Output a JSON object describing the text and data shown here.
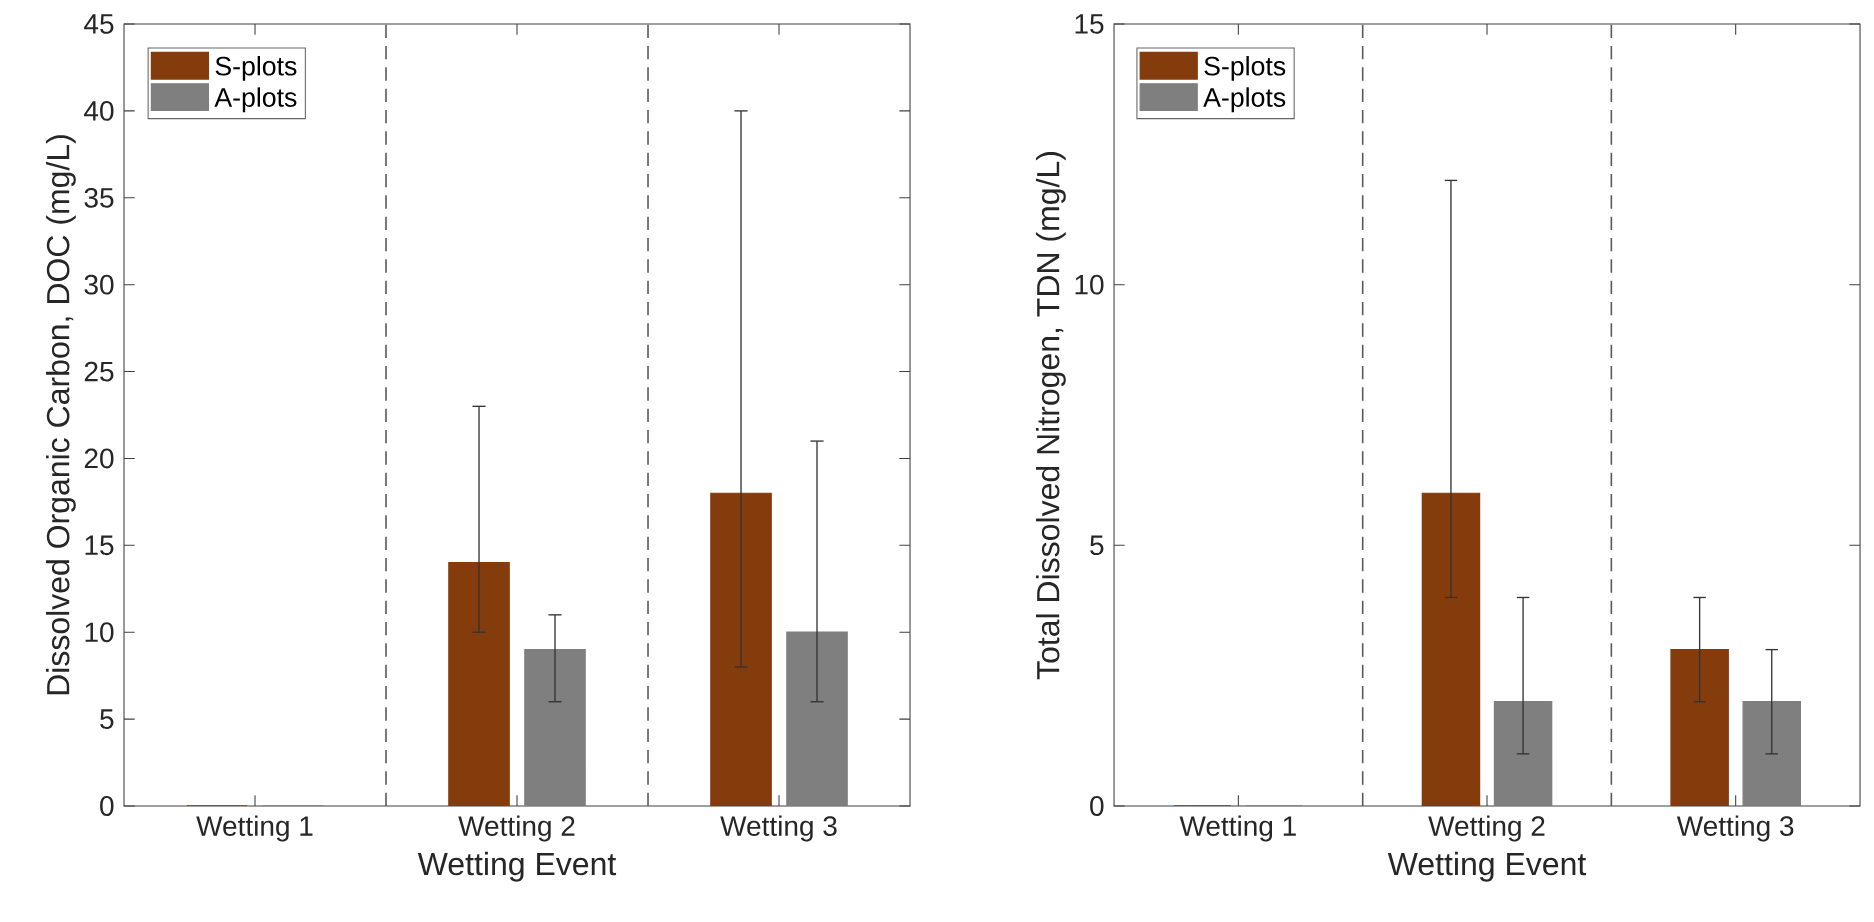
{
  "chart_data": [
    {
      "type": "bar",
      "categories": [
        "Wetting 1",
        "Wetting 2",
        "Wetting 3"
      ],
      "xlabel": "Wetting Event",
      "ylabel": "Dissolved Organic Carbon, DOC (mg/L)",
      "ylim": [
        0,
        45
      ],
      "yticks": [
        0,
        5,
        10,
        15,
        20,
        25,
        30,
        35,
        40,
        45
      ],
      "legend": "top left",
      "series": [
        {
          "name": "S-plots",
          "color": "#843c0c",
          "values": [
            0,
            14,
            18
          ],
          "errors": [
            null,
            [
              10,
              23
            ],
            [
              8,
              40
            ]
          ]
        },
        {
          "name": "A-plots",
          "color": "#7f7f7f",
          "values": [
            0,
            9,
            10
          ],
          "errors": [
            null,
            [
              6,
              11
            ],
            [
              6,
              21
            ]
          ]
        }
      ]
    },
    {
      "type": "bar",
      "categories": [
        "Wetting 1",
        "Wetting 2",
        "Wetting 3"
      ],
      "xlabel": "Wetting Event",
      "ylabel": "Total Dissolved Nitrogen, TDN (mg/L)",
      "ylim": [
        0,
        15
      ],
      "yticks": [
        0,
        5,
        10,
        15
      ],
      "legend": "top left",
      "series": [
        {
          "name": "S-plots",
          "color": "#843c0c",
          "values": [
            0,
            6,
            3
          ],
          "errors": [
            null,
            [
              4,
              12
            ],
            [
              2,
              4
            ]
          ]
        },
        {
          "name": "A-plots",
          "color": "#7f7f7f",
          "values": [
            0,
            2,
            2
          ],
          "errors": [
            null,
            [
              1,
              4
            ],
            [
              1,
              3
            ]
          ]
        }
      ]
    }
  ]
}
